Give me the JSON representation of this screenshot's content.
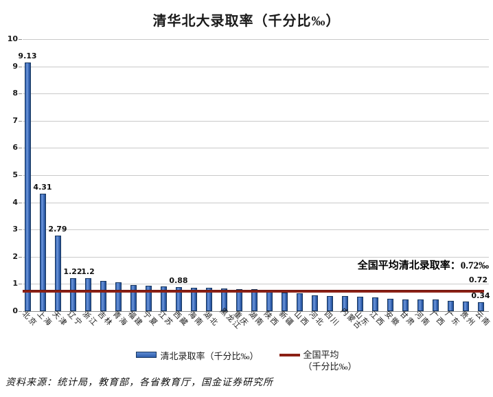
{
  "chart_data": {
    "type": "bar",
    "title": "清华北大录取率（千分比‰）",
    "categories": [
      "北京",
      "上海",
      "天津",
      "辽宁",
      "浙江",
      "吉林",
      "青海",
      "福建",
      "宁夏",
      "江苏",
      "西藏",
      "海南",
      "湖北",
      "黑龙江",
      "重庆",
      "湖南",
      "陕西",
      "新疆",
      "山西",
      "河北",
      "四川",
      "内蒙古",
      "山东",
      "江西",
      "安徽",
      "甘肃",
      "河南",
      "广西",
      "广东",
      "贵州",
      "云南"
    ],
    "values": [
      9.13,
      4.31,
      2.79,
      1.22,
      1.2,
      1.1,
      1.05,
      0.97,
      0.93,
      0.91,
      0.88,
      0.87,
      0.86,
      0.84,
      0.82,
      0.8,
      0.7,
      0.68,
      0.66,
      0.58,
      0.56,
      0.55,
      0.52,
      0.5,
      0.46,
      0.44,
      0.43,
      0.42,
      0.37,
      0.35,
      0.34
    ],
    "value_labels": [
      {
        "index": 0,
        "text": "9.13"
      },
      {
        "index": 1,
        "text": "4.31"
      },
      {
        "index": 2,
        "text": "2.79"
      },
      {
        "index": 3,
        "text": "1.22"
      },
      {
        "index": 4,
        "text": "1.2"
      },
      {
        "index": 10,
        "text": "0.88"
      },
      {
        "index": 30,
        "text": "0.34"
      }
    ],
    "ylim": [
      0,
      10
    ],
    "yticks": [
      0,
      1,
      2,
      3,
      4,
      5,
      6,
      7,
      8,
      9,
      10
    ],
    "grid": true,
    "bar_color": "#3A66B0",
    "bar_border_color": "#17365D",
    "reference_line": {
      "value": 0.72,
      "end_label": "0.72",
      "annotation": "全国平均清北录取率：0.72‰",
      "color": "#8B2015"
    },
    "legend": {
      "position": "bottom",
      "items": [
        {
          "type": "bar",
          "label": "清北录取率（千分比‰）"
        },
        {
          "type": "line",
          "label": "全国平均（千分比‰）",
          "lines": [
            "全国平均",
            "（千分比‰）"
          ]
        }
      ]
    }
  },
  "footer": {
    "source": "资料来源：统计局，教育部，各省教育厅，国金证券研究所"
  }
}
